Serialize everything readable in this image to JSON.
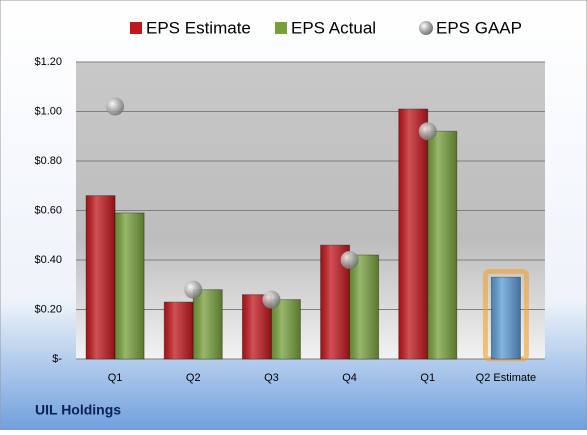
{
  "chart_data": {
    "type": "bar",
    "categories": [
      "Q1",
      "Q2",
      "Q3",
      "Q4",
      "Q1",
      "Q2 Estimate"
    ],
    "series": [
      {
        "name": "EPS Estimate",
        "color": "#c0171d",
        "values": [
          0.66,
          0.23,
          0.26,
          0.46,
          1.01,
          0.33
        ]
      },
      {
        "name": "EPS Actual",
        "color": "#77a03b",
        "values": [
          0.59,
          0.28,
          0.24,
          0.42,
          0.92,
          null
        ]
      },
      {
        "name": "EPS GAAP",
        "color": "#a6a6a6",
        "marker": "circle",
        "values": [
          1.02,
          0.28,
          0.24,
          0.4,
          0.92,
          null
        ]
      }
    ],
    "highlight_color": "#5b9bd5",
    "ylim": [
      0,
      1.2
    ],
    "yticks": [
      {
        "value": 0,
        "label": "$-"
      },
      {
        "value": 0.2,
        "label": "$0.20"
      },
      {
        "value": 0.4,
        "label": "$0.40"
      },
      {
        "value": 0.6,
        "label": "$0.60"
      },
      {
        "value": 0.8,
        "label": "$0.80"
      },
      {
        "value": 1.0,
        "label": "$1.00"
      },
      {
        "value": 1.2,
        "label": "$1.20"
      }
    ],
    "grid": true,
    "footer": "UIL Holdings"
  }
}
